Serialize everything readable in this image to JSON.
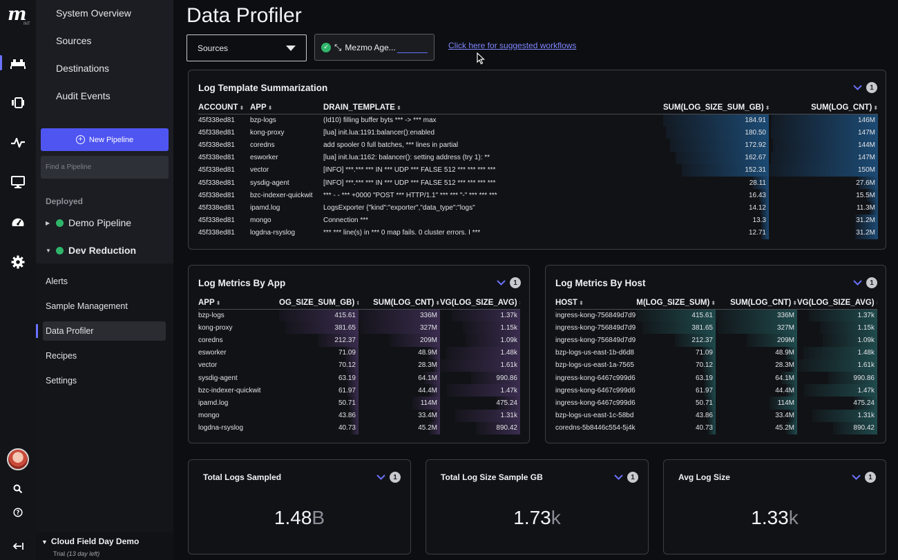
{
  "app": {
    "logo_text": "m",
    "logo_sub": "INT"
  },
  "rail_icons": [
    "pipelines-icon",
    "dashboards-icon",
    "activity-icon",
    "monitor-icon",
    "gauge-icon",
    "settings-icon",
    "search-icon",
    "help-icon",
    "collapse-icon"
  ],
  "sidebar": {
    "top_items": [
      "System Overview",
      "Sources",
      "Destinations",
      "Audit Events"
    ],
    "new_pipeline_label": "New Pipeline",
    "find_placeholder": "Find a Pipeline",
    "deployed_label": "Deployed",
    "pipelines": [
      {
        "name": "Demo Pipeline",
        "expanded": false
      },
      {
        "name": "Dev Reduction",
        "expanded": true
      }
    ],
    "sub_items": [
      "Alerts",
      "Sample Management",
      "Data Profiler",
      "Recipes",
      "Settings"
    ],
    "active_sub_item": "Data Profiler",
    "org_name": "Cloud Field Day Demo",
    "trial_text": "Trial",
    "trial_days": "(13 day left)"
  },
  "header": {
    "title": "Data Profiler",
    "source_select": "Sources",
    "agent_label": "Mezmo Age...",
    "workflow_link": "Click here for suggested workflows"
  },
  "log_template": {
    "title": "Log Template Summarization",
    "badge": "1",
    "columns": [
      "ACCOUNT",
      "APP",
      "DRAIN_TEMPLATE",
      "SUM(LOG_SIZE_SUM_GB)",
      "SUM(LOG_CNT)"
    ],
    "rows": [
      [
        "45f338ed81",
        "bzp-logs",
        "(Id10) filling buffer byts *** -> *** max",
        "184.91",
        "146M"
      ],
      [
        "45f338ed81",
        "kong-proxy",
        "[lua] init.lua:1191:balancer():enabled",
        "180.50",
        "147M"
      ],
      [
        "45f338ed81",
        "coredns",
        "add spooler 0 full batches, *** lines in partial",
        "172.92",
        "144M"
      ],
      [
        "45f338ed81",
        "esworker",
        "[lua] init.lua:1162: balancer(): setting address (try 1): **",
        "162.67",
        "147M"
      ],
      [
        "45f338ed81",
        "vector",
        "[INFO] ***.*** *** IN *** UDP *** FALSE 512 *** *** *** ***",
        "152.31",
        "150M"
      ],
      [
        "45f338ed81",
        "sysdig-agent",
        "[INFO] ***.*** *** IN *** UDP *** FALSE 512 *** *** *** ***",
        "28.11",
        "27.6M"
      ],
      [
        "45f338ed81",
        "bzc-indexer-quickwit",
        "*** - - *** +0000 \"POST *** HTTP/1.1\" *** *** \"-\" *** *** ***",
        "16.43",
        "15.5M"
      ],
      [
        "45f338ed81",
        "ipamd.log",
        "LogsExporter {\"kind\":\"exporter\",\"data_type\":\"logs\"",
        "14.12",
        "11.3M"
      ],
      [
        "45f338ed81",
        "mongo",
        "Connection ***",
        "13.3",
        "31.2M"
      ],
      [
        "45f338ed81",
        "logdna-rsyslog",
        "*** *** line(s) in *** 0 map fails. 0 cluster errors. I ***",
        "12.71",
        "31.2M"
      ]
    ],
    "size_fill": [
      1.0,
      0.976,
      0.935,
      0.88,
      0.824,
      0.152,
      0.089,
      0.076,
      0.072,
      0.069
    ],
    "cnt_fill": [
      0.973,
      0.98,
      0.96,
      0.98,
      1.0,
      0.184,
      0.103,
      0.075,
      0.208,
      0.208
    ]
  },
  "by_app": {
    "title": "Log Metrics By App",
    "badge": "1",
    "columns": [
      "APP",
      "OG_SIZE_SUM_GB)",
      "SUM(LOG_CNT)",
      "VG(LOG_SIZE_AVG)"
    ],
    "rows": [
      [
        "bzp-logs",
        "415.61",
        "336M",
        "1.37k"
      ],
      [
        "kong-proxy",
        "381.65",
        "327M",
        "1.15k"
      ],
      [
        "coredns",
        "212.37",
        "209M",
        "1.09k"
      ],
      [
        "esworker",
        "71.09",
        "48.9M",
        "1.48k"
      ],
      [
        "vector",
        "70.12",
        "28.3M",
        "1.61k"
      ],
      [
        "sysdig-agent",
        "63.19",
        "64.1M",
        "990.86"
      ],
      [
        "bzc-indexer-quickwit",
        "61.97",
        "44.4M",
        "1.47k"
      ],
      [
        "ipamd.log",
        "50.71",
        "114M",
        "475.24"
      ],
      [
        "mongo",
        "43.86",
        "33.4M",
        "1.31k"
      ],
      [
        "logdna-rsyslog",
        "40.73",
        "45.2M",
        "890.42"
      ]
    ]
  },
  "by_host": {
    "title": "Log Metrics By Host",
    "badge": "1",
    "columns": [
      "HOST",
      "M(LOG_SIZE_SUM)",
      "SUM(LOG_CNT)",
      "VG(LOG_SIZE_AVG)"
    ],
    "rows": [
      [
        "ingress-kong-756849d7d9",
        "415.61",
        "336M",
        "1.37k"
      ],
      [
        "ingress-kong-756849d7d9",
        "381.65",
        "327M",
        "1.15k"
      ],
      [
        "ingress-kong-756849d7d9",
        "212.37",
        "209M",
        "1.09k"
      ],
      [
        "bzp-logs-us-east-1b-d6d8",
        "71.09",
        "48.9M",
        "1.48k"
      ],
      [
        "bzp-logs-us-east-1a-7565",
        "70.12",
        "28.3M",
        "1.61k"
      ],
      [
        "ingress-kong-6467c999d6",
        "63.19",
        "64.1M",
        "990.86"
      ],
      [
        "ingress-kong-6467c999d6",
        "61.97",
        "44.4M",
        "1.47k"
      ],
      [
        "ingress-kong-6467c999d6",
        "50.71",
        "114M",
        "475.24"
      ],
      [
        "bzp-logs-us-east-1c-58bd",
        "43.86",
        "33.4M",
        "1.31k"
      ],
      [
        "coredns-5b8446c554-5j4k",
        "40.73",
        "45.2M",
        "890.42"
      ]
    ]
  },
  "metric_fills": {
    "size": [
      1.0,
      0.918,
      0.511,
      0.171,
      0.169,
      0.152,
      0.149,
      0.122,
      0.106,
      0.098
    ],
    "cnt": [
      1.0,
      0.973,
      0.622,
      0.146,
      0.084,
      0.191,
      0.132,
      0.339,
      0.099,
      0.135
    ],
    "avg": [
      0.851,
      0.714,
      0.677,
      0.919,
      1.0,
      0.615,
      0.913,
      0.295,
      0.814,
      0.553
    ]
  },
  "kpis": [
    {
      "title": "Total Logs Sampled",
      "badge": "1",
      "value": "1.48",
      "suffix": "B"
    },
    {
      "title": "Total Log Size Sample GB",
      "badge": "1",
      "value": "1.73",
      "suffix": "k"
    },
    {
      "title": "Avg Log Size",
      "badge": "1",
      "value": "1.33",
      "suffix": "k"
    }
  ],
  "colors": {
    "accent": "#4f55f0",
    "link": "#7f86ff",
    "status_ok": "#2fb56a",
    "bar_blue": "#1c4a73",
    "bar_purple": "#3a2c4e",
    "bar_teal": "#1f4a4c"
  }
}
